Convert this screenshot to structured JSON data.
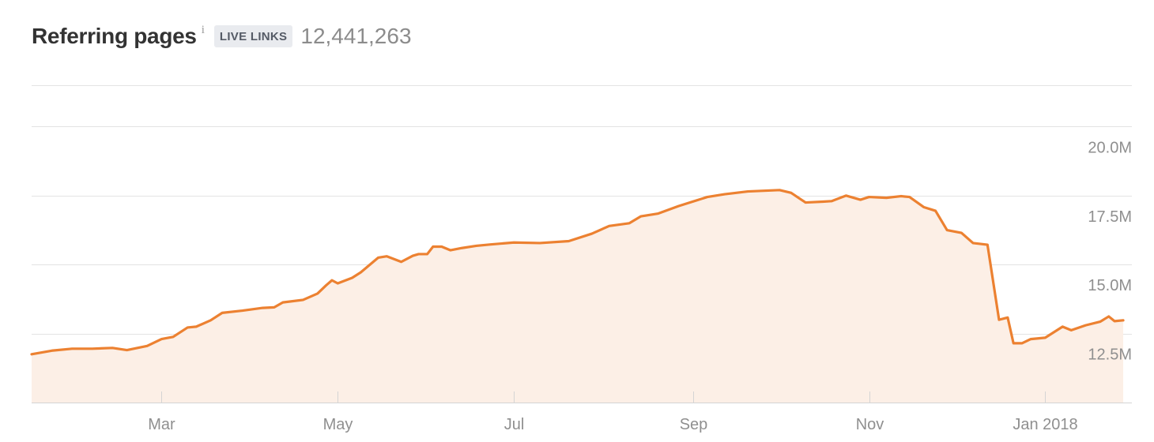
{
  "header": {
    "title": "Referring pages",
    "info_symbol": "i",
    "badge": "LIVE LINKS",
    "total": "12,441,263"
  },
  "colors": {
    "line": "#ec8131",
    "fill": "#fcefe6",
    "grid": "#e3e3e3",
    "axis": "#d4d4d4",
    "tick_label": "#8f8f8f"
  },
  "chart_data": {
    "type": "area",
    "title": "Referring pages",
    "xlabel": "",
    "ylabel": "",
    "x_domain": [
      "2017-01-15",
      "2018-01-31"
    ],
    "ylim": [
      10.0,
      21.5
    ],
    "y_ticks": [
      12.5,
      15.0,
      17.5,
      20.0
    ],
    "y_tick_labels": [
      "12.5M",
      "15.0M",
      "17.5M",
      "20.0M"
    ],
    "x_ticks": [
      "2017-03-01",
      "2017-05-01",
      "2017-07-01",
      "2017-09-01",
      "2017-11-01",
      "2018-01-01"
    ],
    "x_tick_labels": [
      "Mar",
      "May",
      "Jul",
      "Sep",
      "Nov",
      "Jan 2018"
    ],
    "grid": true,
    "series": [
      {
        "name": "Referring pages",
        "x": [
          "2017-01-15",
          "2017-01-22",
          "2017-01-29",
          "2017-02-05",
          "2017-02-12",
          "2017-02-17",
          "2017-02-24",
          "2017-03-01",
          "2017-03-05",
          "2017-03-10",
          "2017-03-13",
          "2017-03-18",
          "2017-03-22",
          "2017-03-29",
          "2017-04-05",
          "2017-04-09",
          "2017-04-12",
          "2017-04-19",
          "2017-04-24",
          "2017-04-27",
          "2017-04-29",
          "2017-05-01",
          "2017-05-06",
          "2017-05-09",
          "2017-05-15",
          "2017-05-18",
          "2017-05-23",
          "2017-05-27",
          "2017-05-29",
          "2017-06-01",
          "2017-06-03",
          "2017-06-06",
          "2017-06-09",
          "2017-06-13",
          "2017-06-18",
          "2017-06-23",
          "2017-07-01",
          "2017-07-10",
          "2017-07-20",
          "2017-07-28",
          "2017-08-03",
          "2017-08-10",
          "2017-08-14",
          "2017-08-20",
          "2017-08-27",
          "2017-09-06",
          "2017-09-12",
          "2017-09-20",
          "2017-10-01",
          "2017-10-05",
          "2017-10-10",
          "2017-10-16",
          "2017-10-19",
          "2017-10-24",
          "2017-10-29",
          "2017-11-01",
          "2017-11-07",
          "2017-11-12",
          "2017-11-15",
          "2017-11-20",
          "2017-11-24",
          "2017-11-28",
          "2017-12-03",
          "2017-12-07",
          "2017-12-12",
          "2017-12-16",
          "2017-12-19",
          "2017-12-21",
          "2017-12-24",
          "2017-12-27",
          "2018-01-01",
          "2018-01-07",
          "2018-01-10",
          "2018-01-15",
          "2018-01-20",
          "2018-01-23",
          "2018-01-25",
          "2018-01-28"
        ],
        "values": [
          11.75,
          11.88,
          11.95,
          11.95,
          11.98,
          11.9,
          12.05,
          12.3,
          12.38,
          12.72,
          12.75,
          12.98,
          13.25,
          13.33,
          13.43,
          13.45,
          13.63,
          13.72,
          13.95,
          14.25,
          14.43,
          14.32,
          14.52,
          14.72,
          15.25,
          15.3,
          15.1,
          15.32,
          15.38,
          15.38,
          15.65,
          15.65,
          15.52,
          15.6,
          15.68,
          15.73,
          15.8,
          15.78,
          15.85,
          16.12,
          16.4,
          16.5,
          16.75,
          16.85,
          17.12,
          17.45,
          17.55,
          17.65,
          17.7,
          17.6,
          17.25,
          17.28,
          17.3,
          17.5,
          17.35,
          17.45,
          17.42,
          17.48,
          17.45,
          17.08,
          16.95,
          16.25,
          16.15,
          15.78,
          15.72,
          13.0,
          13.08,
          12.15,
          12.15,
          12.3,
          12.35,
          12.75,
          12.62,
          12.8,
          12.93,
          13.12,
          12.95,
          12.98
        ]
      }
    ]
  }
}
